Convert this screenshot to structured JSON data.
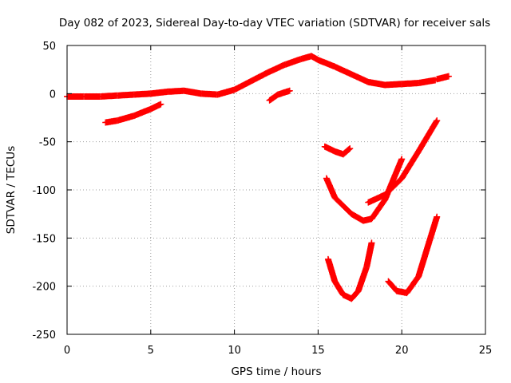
{
  "chart_data": {
    "type": "scatter",
    "title": "Day 082 of 2023, Sidereal Day-to-day VTEC variation (SDTVAR) for receiver sals",
    "xlabel": "GPS time / hours",
    "ylabel": "SDTVAR / TECUs",
    "xlim": [
      0,
      25
    ],
    "ylim": [
      -250,
      50
    ],
    "xticks": [
      0,
      5,
      10,
      15,
      20,
      25
    ],
    "yticks": [
      50,
      0,
      -50,
      -100,
      -150,
      -200,
      -250
    ],
    "grid": true,
    "marker": "plus",
    "color": "#ff0000",
    "series": [
      {
        "x": [
          0.0,
          1.0,
          2.0,
          3.0,
          4.0,
          5.0,
          6.0,
          7.0,
          8.0,
          9.0,
          10.0,
          11.0,
          12.0,
          13.0,
          14.0,
          14.6,
          15.0,
          16.0,
          17.0,
          18.0,
          19.0,
          20.0,
          21.0,
          22.0
        ],
        "y": [
          -3,
          -3,
          -3,
          -2,
          -1,
          0,
          2,
          3,
          0,
          -1,
          4,
          13,
          22,
          30,
          36,
          39,
          35,
          28,
          20,
          12,
          9,
          10,
          11,
          14
        ]
      },
      {
        "x": [
          22.1,
          22.8
        ],
        "y": [
          15,
          18
        ]
      },
      {
        "x": [
          2.3,
          3.0,
          4.0,
          5.0,
          5.6
        ],
        "y": [
          -30,
          -28,
          -23,
          -16,
          -11
        ]
      },
      {
        "x": [
          12.1,
          12.6,
          13.3
        ],
        "y": [
          -7,
          -1,
          3
        ]
      },
      {
        "x": [
          15.4,
          16.0,
          16.5,
          16.9
        ],
        "y": [
          -55,
          -60,
          -63,
          -57
        ]
      },
      {
        "x": [
          15.5,
          16.0,
          17.0,
          17.7,
          18.2,
          19.0,
          20.0
        ],
        "y": [
          -88,
          -108,
          -125,
          -132,
          -130,
          -110,
          -68
        ]
      },
      {
        "x": [
          18.0,
          19.0,
          20.0,
          21.0,
          22.1
        ],
        "y": [
          -113,
          -105,
          -88,
          -60,
          -28
        ]
      },
      {
        "x": [
          15.6,
          16.0,
          16.5,
          17.0,
          17.4,
          17.9,
          18.2
        ],
        "y": [
          -172,
          -195,
          -209,
          -213,
          -205,
          -180,
          -155
        ]
      },
      {
        "x": [
          19.2,
          19.7,
          20.3,
          21.0,
          22.1
        ],
        "y": [
          -195,
          -205,
          -207,
          -190,
          -128
        ]
      }
    ]
  }
}
